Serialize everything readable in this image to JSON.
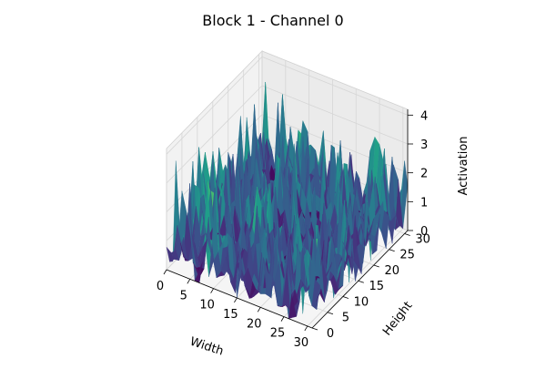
{
  "chart_data": {
    "type": "surface3d",
    "title": "Block 1 - Channel 0",
    "xlabel": "Width",
    "ylabel": "Height",
    "zlabel": "Activation",
    "x_ticks": [
      "0",
      "5",
      "10",
      "15",
      "20",
      "25",
      "30"
    ],
    "y_ticks": [
      "0",
      "5",
      "10",
      "15",
      "20",
      "25",
      "30"
    ],
    "z_ticks": [
      "0",
      "1",
      "2",
      "3",
      "4"
    ],
    "xlim": [
      0,
      31
    ],
    "ylim": [
      0,
      31
    ],
    "zlim": [
      0,
      4.2
    ],
    "grid_size": [
      32,
      32
    ],
    "colormap": "viridis",
    "seed": 7,
    "description_note": ""
  }
}
